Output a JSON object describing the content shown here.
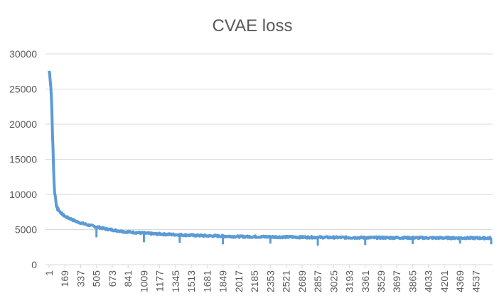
{
  "chart_data": {
    "type": "line",
    "title": "CVAE loss",
    "xlabel": "",
    "ylabel": "",
    "ylim": [
      0,
      30000
    ],
    "xlim": [
      1,
      4700
    ],
    "y_ticks": [
      "0",
      "5000",
      "10000",
      "15000",
      "20000",
      "25000",
      "30000"
    ],
    "x_ticks": [
      "1",
      "169",
      "337",
      "505",
      "673",
      "841",
      "1009",
      "1177",
      "1345",
      "1513",
      "1681",
      "1849",
      "2017",
      "2185",
      "2353",
      "2521",
      "2689",
      "2857",
      "3025",
      "3193",
      "3361",
      "3529",
      "3697",
      "3865",
      "4033",
      "4201",
      "4369",
      "4537"
    ],
    "grid": "horizontal",
    "legend": "none",
    "color": "#5B9BD5",
    "series": [
      {
        "name": "",
        "x": [
          1,
          10,
          20,
          30,
          40,
          50,
          60,
          70,
          80,
          90,
          100,
          120,
          140,
          160,
          180,
          200,
          250,
          300,
          350,
          400,
          450,
          505,
          550,
          600,
          650,
          700,
          750,
          800,
          850,
          900,
          1000,
          1100,
          1200,
          1300,
          1400,
          1500,
          1600,
          1700,
          1800,
          1900,
          2000,
          2200,
          2400,
          2600,
          2800,
          3000,
          3200,
          3400,
          3600,
          3800,
          4000,
          4200,
          4400,
          4600,
          4700
        ],
        "y": [
          27600,
          27000,
          25500,
          22500,
          17500,
          13000,
          10500,
          9200,
          8600,
          8100,
          7800,
          7500,
          7200,
          7000,
          6800,
          6700,
          6400,
          6100,
          5900,
          5700,
          5550,
          5400,
          5250,
          5100,
          5000,
          4900,
          4800,
          4700,
          4650,
          4600,
          4500,
          4400,
          4350,
          4300,
          4250,
          4200,
          4150,
          4100,
          4080,
          4050,
          4000,
          3980,
          3950,
          3930,
          3900,
          3880,
          3860,
          3850,
          3840,
          3830,
          3820,
          3810,
          3800,
          3790,
          3780
        ]
      }
    ],
    "dips": [
      {
        "x": 505,
        "y": 3900
      },
      {
        "x": 1009,
        "y": 3200
      },
      {
        "x": 1390,
        "y": 3100
      },
      {
        "x": 1849,
        "y": 2900
      },
      {
        "x": 2353,
        "y": 3000
      },
      {
        "x": 2857,
        "y": 2700
      },
      {
        "x": 3361,
        "y": 2800
      },
      {
        "x": 3865,
        "y": 2950
      },
      {
        "x": 4369,
        "y": 3000
      },
      {
        "x": 4700,
        "y": 2900
      }
    ]
  }
}
